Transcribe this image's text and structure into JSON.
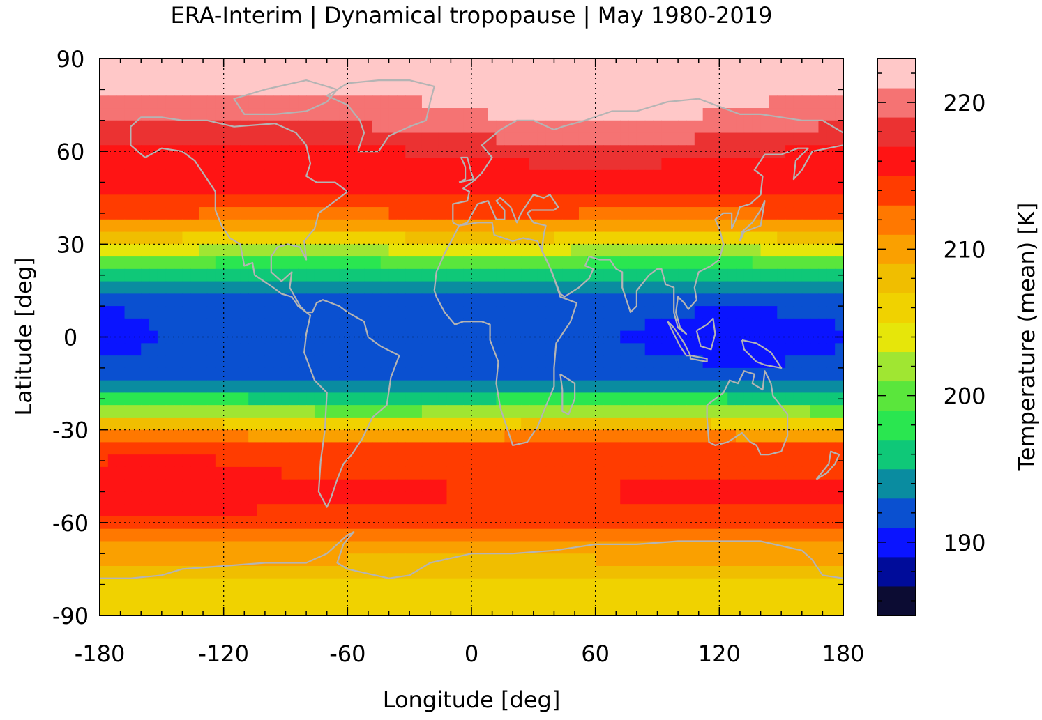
{
  "chart_data": {
    "type": "heatmap",
    "title": "ERA-Interim | Dynamical tropopause | May 1980-2019",
    "xlabel": "Longitude [deg]",
    "ylabel": "Latitude [deg]",
    "colorbar_label": "Temperature (mean) [K]",
    "xlim": [
      -180,
      180
    ],
    "ylim": [
      -90,
      90
    ],
    "xticks": [
      -180,
      -120,
      -60,
      0,
      60,
      120,
      180
    ],
    "yticks": [
      90,
      60,
      30,
      0,
      -30,
      -60,
      -90
    ],
    "grid": true,
    "colorbar": {
      "range": [
        185,
        223
      ],
      "ticks": [
        220,
        210,
        200,
        190
      ],
      "levels": [
        {
          "min": 185,
          "max": 187,
          "color": "#0c0c33"
        },
        {
          "min": 187,
          "max": 189,
          "color": "#000c9a"
        },
        {
          "min": 189,
          "max": 191,
          "color": "#0a14ff"
        },
        {
          "min": 191,
          "max": 193,
          "color": "#0a50d0"
        },
        {
          "min": 193,
          "max": 195,
          "color": "#0a8ca0"
        },
        {
          "min": 195,
          "max": 197,
          "color": "#0fc878"
        },
        {
          "min": 197,
          "max": 199,
          "color": "#2ae650"
        },
        {
          "min": 199,
          "max": 201,
          "color": "#5ae63c"
        },
        {
          "min": 201,
          "max": 203,
          "color": "#a0e632"
        },
        {
          "min": 203,
          "max": 205,
          "color": "#e6e60a"
        },
        {
          "min": 205,
          "max": 207,
          "color": "#f0d200"
        },
        {
          "min": 207,
          "max": 209,
          "color": "#f0be00"
        },
        {
          "min": 209,
          "max": 211,
          "color": "#faa000"
        },
        {
          "min": 211,
          "max": 213,
          "color": "#ff7800"
        },
        {
          "min": 213,
          "max": 215,
          "color": "#ff3c00"
        },
        {
          "min": 215,
          "max": 217,
          "color": "#ff1414"
        },
        {
          "min": 217,
          "max": 219,
          "color": "#eb3232"
        },
        {
          "min": 219,
          "max": 221,
          "color": "#f57373"
        },
        {
          "min": 221,
          "max": 223,
          "color": "#ffc8c8"
        }
      ]
    },
    "zonal_profile": [
      {
        "lat": 90,
        "value": 222
      },
      {
        "lat": 80,
        "value": 221.5
      },
      {
        "lat": 70,
        "value": 220
      },
      {
        "lat": 60,
        "value": 217
      },
      {
        "lat": 50,
        "value": 216
      },
      {
        "lat": 40,
        "value": 213
      },
      {
        "lat": 35,
        "value": 209
      },
      {
        "lat": 30,
        "value": 205
      },
      {
        "lat": 25,
        "value": 200
      },
      {
        "lat": 20,
        "value": 196
      },
      {
        "lat": 15,
        "value": 193
      },
      {
        "lat": 10,
        "value": 192
      },
      {
        "lat": 0,
        "value": 191.5
      },
      {
        "lat": -10,
        "value": 192
      },
      {
        "lat": -15,
        "value": 193
      },
      {
        "lat": -20,
        "value": 197
      },
      {
        "lat": -25,
        "value": 203
      },
      {
        "lat": -30,
        "value": 209
      },
      {
        "lat": -35,
        "value": 214
      },
      {
        "lat": -50,
        "value": 215.5
      },
      {
        "lat": -60,
        "value": 214.5
      },
      {
        "lat": -70,
        "value": 210
      },
      {
        "lat": -80,
        "value": 207
      },
      {
        "lat": -90,
        "value": 206
      }
    ],
    "coastline_color": "#b4b4b4",
    "grid_style": "dotted"
  }
}
